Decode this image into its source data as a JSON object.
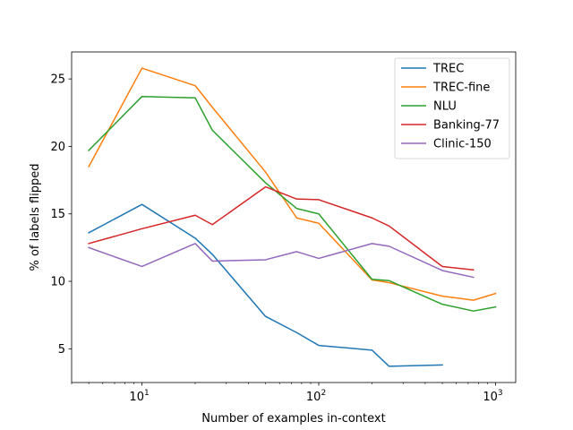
{
  "chart_data": {
    "type": "line",
    "title": "",
    "xlabel": "Number of examples in-context",
    "ylabel": "% of labels flipped",
    "xscale": "log",
    "xlim": [
      4,
      1300
    ],
    "ylim": [
      2.5,
      27
    ],
    "x_ticks": [
      {
        "value": 10,
        "base": "10",
        "exp": "1"
      },
      {
        "value": 100,
        "base": "10",
        "exp": "2"
      },
      {
        "value": 1000,
        "base": "10",
        "exp": "3"
      }
    ],
    "y_ticks": [
      {
        "value": 5,
        "label": "5"
      },
      {
        "value": 10,
        "label": "10"
      },
      {
        "value": 15,
        "label": "15"
      },
      {
        "value": 20,
        "label": "20"
      },
      {
        "value": 25,
        "label": "25"
      }
    ],
    "grid": false,
    "legend_position": "top-right",
    "series": [
      {
        "name": "TREC",
        "color": "#1f77b4",
        "x": [
          5,
          10,
          20,
          25,
          50,
          75,
          100,
          200,
          250,
          500
        ],
        "y": [
          13.6,
          15.7,
          13.2,
          12.0,
          7.4,
          6.2,
          5.25,
          4.9,
          3.7,
          3.8
        ]
      },
      {
        "name": "TREC-fine",
        "color": "#ff7f0e",
        "x": [
          5,
          10,
          20,
          25,
          50,
          75,
          100,
          200,
          250,
          500,
          750,
          1000
        ],
        "y": [
          18.5,
          25.8,
          24.5,
          22.9,
          18.1,
          14.7,
          14.3,
          10.1,
          9.9,
          8.9,
          8.6,
          9.1
        ]
      },
      {
        "name": "NLU",
        "color": "#2ca02c",
        "x": [
          5,
          10,
          20,
          25,
          50,
          75,
          100,
          200,
          250,
          500,
          750,
          1000
        ],
        "y": [
          19.7,
          23.7,
          23.6,
          21.2,
          17.3,
          15.4,
          15.0,
          10.15,
          10.05,
          8.3,
          7.8,
          8.1
        ]
      },
      {
        "name": "Banking-77",
        "color": "#d62728",
        "x": [
          5,
          10,
          20,
          25,
          50,
          75,
          100,
          200,
          250,
          500,
          750
        ],
        "y": [
          12.8,
          13.9,
          14.9,
          14.2,
          17.0,
          16.1,
          16.05,
          14.7,
          14.1,
          11.1,
          10.85
        ]
      },
      {
        "name": "Clinic-150",
        "color": "#9467bd",
        "x": [
          5,
          10,
          20,
          25,
          50,
          75,
          100,
          200,
          250,
          500,
          750
        ],
        "y": [
          12.5,
          11.1,
          12.8,
          11.5,
          11.6,
          12.2,
          11.7,
          12.8,
          12.6,
          10.8,
          10.3
        ]
      }
    ]
  }
}
